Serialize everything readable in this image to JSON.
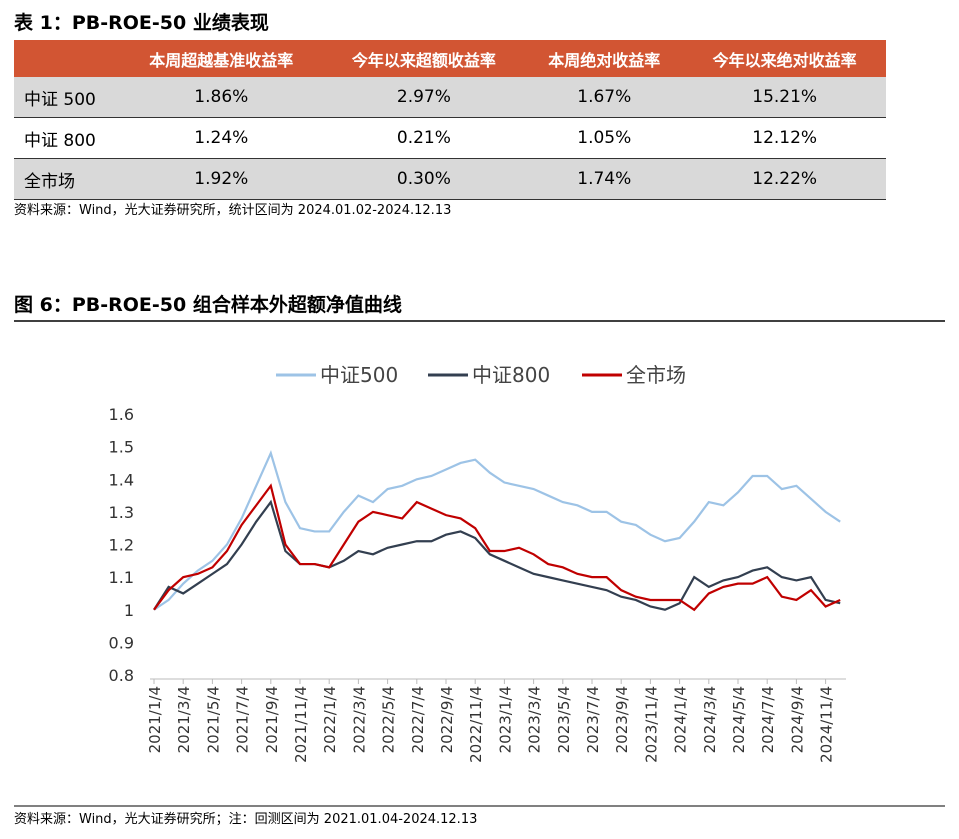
{
  "table": {
    "title": "表 1：PB-ROE-50 业绩表现",
    "header": [
      "本周超越基准收益率",
      "今年以来超额收益率",
      "本周绝对收益率",
      "今年以来绝对收益率"
    ],
    "rows": [
      [
        "中证 500",
        "1.86%",
        "2.97%",
        "1.67%",
        "15.21%"
      ],
      [
        "中证 800",
        "1.24%",
        "0.21%",
        "1.05%",
        "12.12%"
      ],
      [
        "全市场",
        "1.92%",
        "0.30%",
        "1.74%",
        "12.22%"
      ]
    ],
    "source": "资料来源：Wind，光大证券研究所，统计区间为 2024.01.02-2024.12.13"
  },
  "chart_data": {
    "type": "line",
    "title": "图 6：PB-ROE-50 组合样本外超额净值曲线",
    "source": "资料来源：Wind，光大证券研究所；注：回测区间为 2021.01.04-2024.12.13",
    "x": [
      "2021/1/4",
      null,
      "2021/3/4",
      null,
      "2021/5/4",
      null,
      "2021/7/4",
      null,
      "2021/9/4",
      null,
      "2021/11/4",
      null,
      "2022/1/4",
      null,
      "2022/3/4",
      null,
      "2022/5/4",
      null,
      "2022/7/4",
      null,
      "2022/9/4",
      null,
      "2022/11/4",
      null,
      "2023/1/4",
      null,
      "2023/3/4",
      null,
      "2023/5/4",
      null,
      "2023/7/4",
      null,
      "2023/9/4",
      null,
      "2023/11/4",
      null,
      "2024/1/4",
      null,
      "2024/3/4",
      null,
      "2024/5/4",
      null,
      "2024/7/4",
      null,
      "2024/9/4",
      null,
      "2024/11/4",
      null
    ],
    "series": [
      {
        "name": "中证500",
        "color": "#9dc3e6",
        "values": [
          1.0,
          1.03,
          1.08,
          1.12,
          1.15,
          1.2,
          1.28,
          1.38,
          1.48,
          1.33,
          1.25,
          1.24,
          1.24,
          1.3,
          1.35,
          1.33,
          1.37,
          1.38,
          1.4,
          1.41,
          1.43,
          1.45,
          1.46,
          1.42,
          1.39,
          1.38,
          1.37,
          1.35,
          1.33,
          1.32,
          1.3,
          1.3,
          1.27,
          1.26,
          1.23,
          1.21,
          1.22,
          1.27,
          1.33,
          1.32,
          1.36,
          1.41,
          1.41,
          1.37,
          1.38,
          1.34,
          1.3,
          1.27
        ]
      },
      {
        "name": "中证800",
        "color": "#333f50",
        "values": [
          1.0,
          1.07,
          1.05,
          1.08,
          1.11,
          1.14,
          1.2,
          1.27,
          1.33,
          1.18,
          1.14,
          1.14,
          1.13,
          1.15,
          1.18,
          1.17,
          1.19,
          1.2,
          1.21,
          1.21,
          1.23,
          1.24,
          1.22,
          1.17,
          1.15,
          1.13,
          1.11,
          1.1,
          1.09,
          1.08,
          1.07,
          1.06,
          1.04,
          1.03,
          1.01,
          1.0,
          1.02,
          1.1,
          1.07,
          1.09,
          1.1,
          1.12,
          1.13,
          1.1,
          1.09,
          1.1,
          1.03,
          1.02
        ]
      },
      {
        "name": "全市场",
        "color": "#c00000",
        "values": [
          1.0,
          1.06,
          1.1,
          1.11,
          1.13,
          1.18,
          1.26,
          1.32,
          1.38,
          1.2,
          1.14,
          1.14,
          1.13,
          1.2,
          1.27,
          1.3,
          1.29,
          1.28,
          1.33,
          1.31,
          1.29,
          1.28,
          1.25,
          1.18,
          1.18,
          1.19,
          1.17,
          1.14,
          1.13,
          1.11,
          1.1,
          1.1,
          1.06,
          1.04,
          1.03,
          1.03,
          1.03,
          1.0,
          1.05,
          1.07,
          1.08,
          1.08,
          1.1,
          1.04,
          1.03,
          1.06,
          1.01,
          1.03
        ]
      }
    ],
    "ylim": [
      0.8,
      1.6
    ],
    "yticks": [
      0.8,
      0.9,
      1,
      1.1,
      1.2,
      1.3,
      1.4,
      1.5,
      1.6
    ]
  }
}
